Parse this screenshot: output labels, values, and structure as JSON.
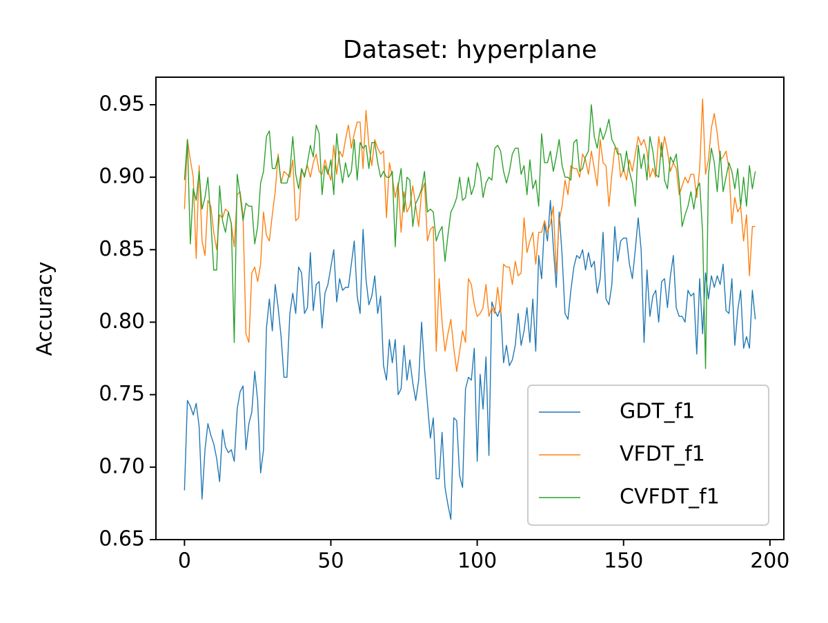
{
  "chart_data": {
    "type": "line",
    "title": "Dataset: hyperplane",
    "y_label": "Accuracy",
    "x": [
      0,
      1,
      2,
      3,
      4,
      5,
      6,
      7,
      8,
      9,
      10,
      11,
      12,
      13,
      14,
      15,
      16,
      17,
      18,
      19,
      20,
      21,
      22,
      23,
      24,
      25,
      26,
      27,
      28,
      29,
      30,
      31,
      32,
      33,
      34,
      35,
      36,
      37,
      38,
      39,
      40,
      41,
      42,
      43,
      44,
      45,
      46,
      47,
      48,
      49,
      50,
      51,
      52,
      53,
      54,
      55,
      56,
      57,
      58,
      59,
      60,
      61,
      62,
      63,
      64,
      65,
      66,
      67,
      68,
      69,
      70,
      71,
      72,
      73,
      74,
      75,
      76,
      77,
      78,
      79,
      80,
      81,
      82,
      83,
      84,
      85,
      86,
      87,
      88,
      89,
      90,
      91,
      92,
      93,
      94,
      95,
      96,
      97,
      98,
      99,
      100,
      101,
      102,
      103,
      104,
      105,
      106,
      107,
      108,
      109,
      110,
      111,
      112,
      113,
      114,
      115,
      116,
      117,
      118,
      119,
      120,
      121,
      122,
      123,
      124,
      125,
      126,
      127,
      128,
      129,
      130,
      131,
      132,
      133,
      134,
      135,
      136,
      137,
      138,
      139,
      140,
      141,
      142,
      143,
      144,
      145,
      146,
      147,
      148,
      149,
      150,
      151,
      152,
      153,
      154,
      155,
      156,
      157,
      158,
      159,
      160,
      161,
      162,
      163,
      164,
      165,
      166,
      167,
      168,
      169,
      170,
      171,
      172,
      173,
      174,
      175,
      176,
      177,
      178,
      179,
      180,
      181,
      182,
      183,
      184,
      185,
      186,
      187,
      188,
      189,
      190,
      191,
      192,
      193,
      194,
      195
    ],
    "series": [
      {
        "name": "GDT_f1",
        "color": "#1f77b4",
        "values": [
          0.684,
          0.746,
          0.742,
          0.736,
          0.744,
          0.728,
          0.678,
          0.712,
          0.73,
          0.722,
          0.716,
          0.706,
          0.69,
          0.726,
          0.714,
          0.71,
          0.712,
          0.704,
          0.74,
          0.752,
          0.756,
          0.712,
          0.73,
          0.738,
          0.766,
          0.746,
          0.696,
          0.712,
          0.796,
          0.816,
          0.794,
          0.826,
          0.81,
          0.79,
          0.762,
          0.762,
          0.806,
          0.82,
          0.806,
          0.838,
          0.834,
          0.806,
          0.81,
          0.848,
          0.808,
          0.826,
          0.828,
          0.796,
          0.82,
          0.826,
          0.838,
          0.85,
          0.814,
          0.83,
          0.822,
          0.824,
          0.824,
          0.84,
          0.856,
          0.818,
          0.806,
          0.864,
          0.83,
          0.812,
          0.818,
          0.832,
          0.806,
          0.818,
          0.77,
          0.76,
          0.788,
          0.772,
          0.788,
          0.75,
          0.754,
          0.784,
          0.76,
          0.774,
          0.758,
          0.746,
          0.76,
          0.8,
          0.768,
          0.744,
          0.72,
          0.734,
          0.692,
          0.692,
          0.724,
          0.686,
          0.674,
          0.664,
          0.734,
          0.732,
          0.694,
          0.686,
          0.754,
          0.762,
          0.76,
          0.782,
          0.704,
          0.764,
          0.74,
          0.776,
          0.708,
          0.814,
          0.808,
          0.804,
          0.81,
          0.772,
          0.784,
          0.77,
          0.774,
          0.784,
          0.806,
          0.784,
          0.794,
          0.81,
          0.786,
          0.816,
          0.78,
          0.846,
          0.83,
          0.868,
          0.856,
          0.884,
          0.852,
          0.824,
          0.876,
          0.846,
          0.806,
          0.802,
          0.822,
          0.838,
          0.846,
          0.844,
          0.85,
          0.836,
          0.848,
          0.838,
          0.842,
          0.82,
          0.83,
          0.862,
          0.816,
          0.812,
          0.826,
          0.866,
          0.842,
          0.856,
          0.858,
          0.858,
          0.84,
          0.83,
          0.85,
          0.872,
          0.85,
          0.786,
          0.836,
          0.804,
          0.818,
          0.822,
          0.8,
          0.828,
          0.83,
          0.81,
          0.832,
          0.846,
          0.81,
          0.804,
          0.804,
          0.8,
          0.822,
          0.818,
          0.82,
          0.778,
          0.83,
          0.792,
          0.834,
          0.816,
          0.832,
          0.824,
          0.832,
          0.826,
          0.84,
          0.808,
          0.806,
          0.83,
          0.784,
          0.808,
          0.822,
          0.782,
          0.79,
          0.782,
          0.822,
          0.802
        ]
      },
      {
        "name": "VFDT_f1",
        "color": "#ff7f0e",
        "values": [
          0.878,
          0.926,
          0.912,
          0.9,
          0.844,
          0.908,
          0.856,
          0.846,
          0.884,
          0.88,
          0.862,
          0.85,
          0.874,
          0.872,
          0.878,
          0.876,
          0.868,
          0.852,
          0.888,
          0.89,
          0.874,
          0.792,
          0.786,
          0.834,
          0.838,
          0.828,
          0.84,
          0.876,
          0.86,
          0.856,
          0.874,
          0.89,
          0.916,
          0.896,
          0.904,
          0.902,
          0.9,
          0.912,
          0.87,
          0.872,
          0.904,
          0.902,
          0.908,
          0.9,
          0.91,
          0.916,
          0.904,
          0.902,
          0.912,
          0.904,
          0.898,
          0.922,
          0.902,
          0.918,
          0.914,
          0.926,
          0.936,
          0.92,
          0.93,
          0.938,
          0.938,
          0.906,
          0.946,
          0.922,
          0.908,
          0.926,
          0.92,
          0.916,
          0.918,
          0.872,
          0.91,
          0.9,
          0.886,
          0.896,
          0.862,
          0.89,
          0.876,
          0.88,
          0.894,
          0.88,
          0.866,
          0.89,
          0.896,
          0.856,
          0.864,
          0.866,
          0.78,
          0.83,
          0.8,
          0.78,
          0.792,
          0.802,
          0.782,
          0.766,
          0.78,
          0.794,
          0.786,
          0.83,
          0.826,
          0.812,
          0.804,
          0.806,
          0.81,
          0.826,
          0.804,
          0.81,
          0.806,
          0.824,
          0.806,
          0.84,
          0.838,
          0.838,
          0.826,
          0.842,
          0.832,
          0.834,
          0.872,
          0.848,
          0.856,
          0.862,
          0.84,
          0.862,
          0.862,
          0.87,
          0.862,
          0.868,
          0.88,
          0.834,
          0.87,
          0.88,
          0.898,
          0.888,
          0.908,
          0.906,
          0.906,
          0.9,
          0.916,
          0.912,
          0.902,
          0.918,
          0.906,
          0.894,
          0.926,
          0.91,
          0.908,
          0.88,
          0.902,
          0.92,
          0.92,
          0.9,
          0.906,
          0.898,
          0.912,
          0.904,
          0.916,
          0.928,
          0.922,
          0.926,
          0.918,
          0.9,
          0.906,
          0.9,
          0.928,
          0.914,
          0.928,
          0.918,
          0.904,
          0.91,
          0.906,
          0.888,
          0.894,
          0.9,
          0.896,
          0.902,
          0.902,
          0.886,
          0.906,
          0.954,
          0.902,
          0.912,
          0.934,
          0.944,
          0.93,
          0.912,
          0.914,
          0.918,
          0.906,
          0.868,
          0.886,
          0.876,
          0.88,
          0.856,
          0.874,
          0.832,
          0.866,
          0.866
        ]
      },
      {
        "name": "CVFDT_f1",
        "color": "#2ca02c",
        "values": [
          0.898,
          0.926,
          0.854,
          0.892,
          0.884,
          0.904,
          0.878,
          0.886,
          0.9,
          0.87,
          0.836,
          0.836,
          0.894,
          0.87,
          0.862,
          0.876,
          0.868,
          0.786,
          0.902,
          0.888,
          0.87,
          0.882,
          0.88,
          0.88,
          0.854,
          0.866,
          0.896,
          0.904,
          0.928,
          0.932,
          0.906,
          0.906,
          0.914,
          0.896,
          0.896,
          0.896,
          0.904,
          0.928,
          0.902,
          0.892,
          0.906,
          0.9,
          0.91,
          0.922,
          0.914,
          0.936,
          0.93,
          0.888,
          0.908,
          0.902,
          0.912,
          0.888,
          0.93,
          0.91,
          0.896,
          0.91,
          0.9,
          0.904,
          0.926,
          0.898,
          0.924,
          0.92,
          0.922,
          0.906,
          0.924,
          0.924,
          0.91,
          0.9,
          0.904,
          0.9,
          0.9,
          0.904,
          0.852,
          0.894,
          0.906,
          0.876,
          0.9,
          0.898,
          0.866,
          0.882,
          0.886,
          0.892,
          0.904,
          0.876,
          0.878,
          0.876,
          0.856,
          0.862,
          0.866,
          0.842,
          0.86,
          0.876,
          0.88,
          0.886,
          0.9,
          0.884,
          0.886,
          0.9,
          0.888,
          0.894,
          0.91,
          0.904,
          0.886,
          0.896,
          0.9,
          0.898,
          0.92,
          0.922,
          0.918,
          0.904,
          0.896,
          0.904,
          0.916,
          0.92,
          0.92,
          0.902,
          0.908,
          0.888,
          0.912,
          0.892,
          0.898,
          0.88,
          0.93,
          0.91,
          0.91,
          0.918,
          0.904,
          0.914,
          0.926,
          0.908,
          0.9,
          0.9,
          0.898,
          0.924,
          0.926,
          0.904,
          0.906,
          0.914,
          0.918,
          0.95,
          0.928,
          0.92,
          0.934,
          0.926,
          0.932,
          0.94,
          0.926,
          0.922,
          0.916,
          0.916,
          0.904,
          0.918,
          0.904,
          0.896,
          0.88,
          0.922,
          0.906,
          0.916,
          0.898,
          0.928,
          0.918,
          0.902,
          0.9,
          0.924,
          0.898,
          0.892,
          0.914,
          0.91,
          0.916,
          0.896,
          0.866,
          0.874,
          0.88,
          0.89,
          0.878,
          0.892,
          0.896,
          0.862,
          0.768,
          0.902,
          0.92,
          0.91,
          0.89,
          0.918,
          0.89,
          0.9,
          0.91,
          0.904,
          0.892,
          0.906,
          0.88,
          0.9,
          0.88,
          0.908,
          0.892,
          0.904
        ]
      }
    ],
    "xlim": [
      -9.75,
      204.75
    ],
    "ylim": [
      0.65,
      0.969
    ],
    "xticks": [
      0,
      50,
      100,
      150,
      200
    ],
    "yticks": [
      0.65,
      {
        "value": 0.7,
        "label": "0.70"
      },
      0.75,
      {
        "value": 0.8,
        "label": "0.80"
      },
      0.85,
      {
        "value": 0.9,
        "label": "0.90"
      },
      0.95
    ],
    "grid": false,
    "legend": "lower right"
  }
}
